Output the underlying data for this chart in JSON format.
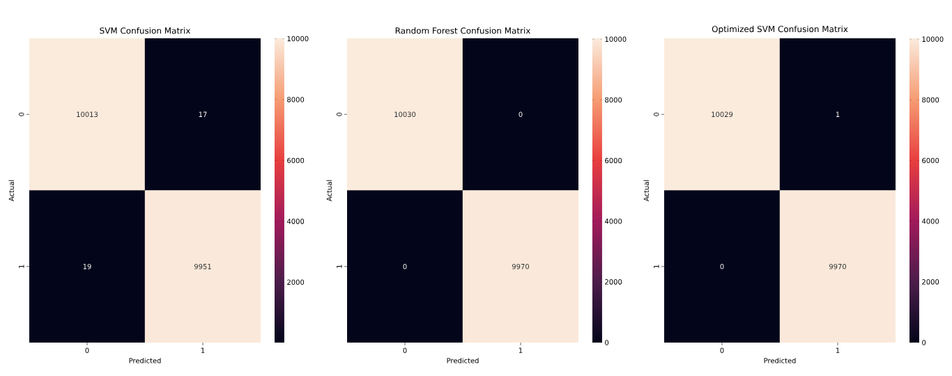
{
  "chart_data": [
    {
      "type": "heatmap",
      "title": "SVM Confusion Matrix",
      "xlabel": "Predicted",
      "ylabel": "Actual",
      "categories": [
        "0",
        "1"
      ],
      "y_categories": [
        "0",
        "1"
      ],
      "cells": [
        [
          10013,
          17
        ],
        [
          19,
          9951
        ]
      ],
      "clim": [
        17,
        10013
      ],
      "cticks": [
        2000,
        4000,
        6000,
        8000,
        10000
      ],
      "data_labels": true
    },
    {
      "type": "heatmap",
      "title": "Random Forest Confusion Matrix",
      "xlabel": "Predicted",
      "ylabel": "Actual",
      "categories": [
        "0",
        "1"
      ],
      "y_categories": [
        "0",
        "1"
      ],
      "cells": [
        [
          10030,
          0
        ],
        [
          0,
          9970
        ]
      ],
      "clim": [
        0,
        10030
      ],
      "cticks": [
        0,
        2000,
        4000,
        6000,
        8000,
        10000
      ],
      "data_labels": true
    },
    {
      "type": "heatmap",
      "title": "Optimized SVM Confusion Matrix",
      "xlabel": "Predicted",
      "ylabel": "Actual",
      "categories": [
        "0",
        "1"
      ],
      "y_categories": [
        "0",
        "1"
      ],
      "cells": [
        [
          10029,
          1
        ],
        [
          0,
          9970
        ]
      ],
      "clim": [
        0,
        10029
      ],
      "cticks": [
        0,
        2000,
        4000,
        6000,
        8000,
        10000
      ],
      "data_labels": true
    }
  ]
}
